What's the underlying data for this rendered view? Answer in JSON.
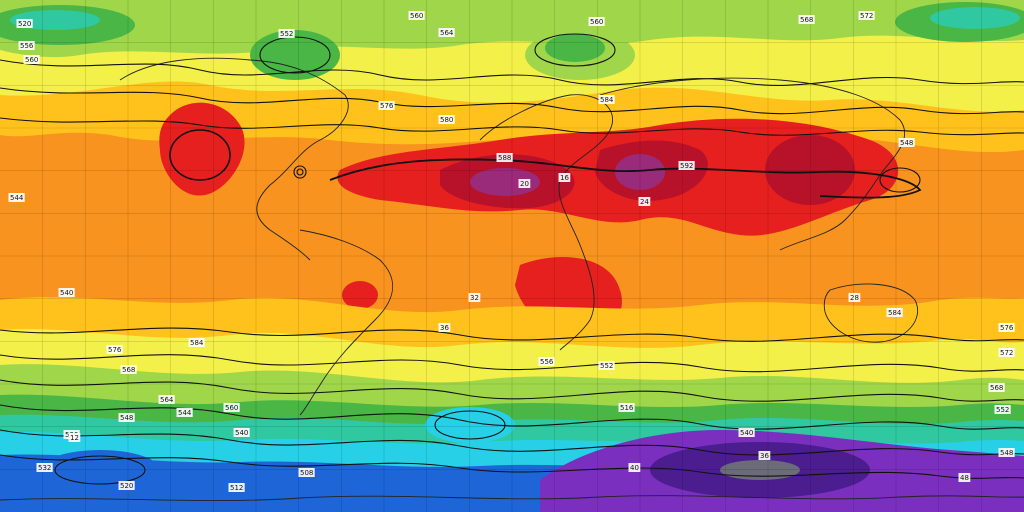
{
  "map": {
    "contour_labels": [
      "520",
      "556",
      "560",
      "552",
      "560",
      "564",
      "560",
      "568",
      "572",
      "576",
      "580",
      "584",
      "588",
      "592",
      "548",
      "544",
      "540",
      "576",
      "584",
      "568",
      "564",
      "560",
      "556",
      "552",
      "548",
      "544",
      "540",
      "536",
      "532",
      "520",
      "512",
      "508",
      "584",
      "576",
      "572",
      "568",
      "552",
      "548",
      "516",
      "540",
      "12",
      "16",
      "20",
      "24",
      "28",
      "32",
      "36",
      "40",
      "48",
      "36"
    ],
    "colors": {
      "deep_purple": "#4b1d8f",
      "purple": "#7a2fbf",
      "blue": "#1e66d8",
      "cyan": "#27d0e6",
      "teal": "#2fc8a0",
      "green": "#49b646",
      "light_green": "#9fd64a",
      "yellow": "#f4f04a",
      "light_orange": "#ffc21c",
      "orange": "#f7931e",
      "dark_orange": "#ef6a1a",
      "red": "#e5201f",
      "dark_red": "#b8122a",
      "magenta": "#9a2b7a",
      "contour": "#111111",
      "coast": "#222222"
    }
  }
}
